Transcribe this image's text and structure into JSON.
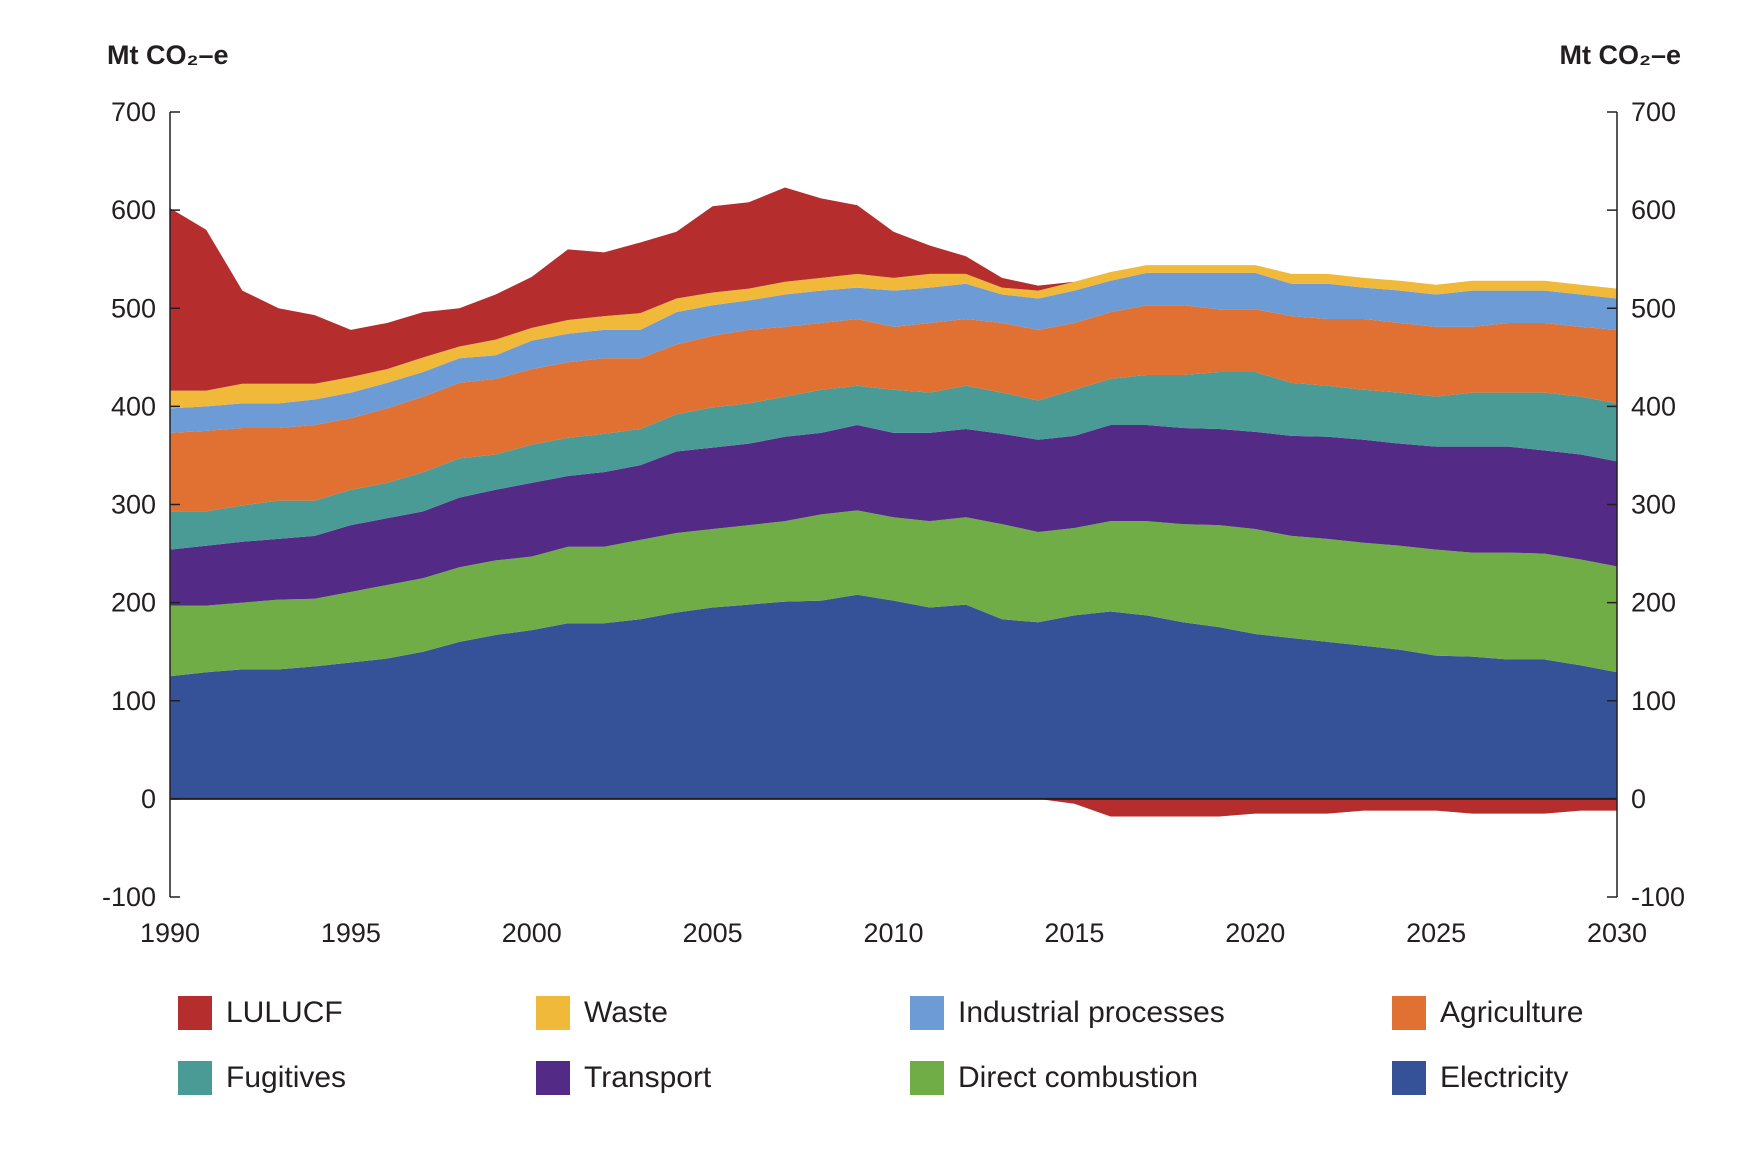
{
  "chart_data": {
    "type": "area",
    "stacked": true,
    "y_label_left": "Mt CO₂–e",
    "y_label_right": "Mt CO₂–e",
    "ylim": [
      -100,
      700
    ],
    "yticks": [
      -100,
      0,
      100,
      200,
      300,
      400,
      500,
      600,
      700
    ],
    "xlim": [
      1990,
      2030
    ],
    "xticks": [
      1990,
      1995,
      2000,
      2005,
      2010,
      2015,
      2020,
      2025,
      2030
    ],
    "grid": false,
    "legend_position": "bottom",
    "x": [
      1990,
      1991,
      1992,
      1993,
      1994,
      1995,
      1996,
      1997,
      1998,
      1999,
      2000,
      2001,
      2002,
      2003,
      2004,
      2005,
      2006,
      2007,
      2008,
      2009,
      2010,
      2011,
      2012,
      2013,
      2014,
      2015,
      2016,
      2017,
      2018,
      2019,
      2020,
      2021,
      2022,
      2023,
      2024,
      2025,
      2026,
      2027,
      2028,
      2029,
      2030
    ],
    "series": [
      {
        "name": "Electricity",
        "color": "#355299",
        "values": [
          125,
          129,
          132,
          132,
          135,
          139,
          143,
          150,
          160,
          167,
          172,
          179,
          179,
          183,
          190,
          195,
          198,
          201,
          202,
          208,
          202,
          195,
          198,
          183,
          180,
          187,
          191,
          187,
          180,
          175,
          168,
          164,
          160,
          156,
          152,
          146,
          145,
          142,
          142,
          136,
          129
        ]
      },
      {
        "name": "Direct combustion",
        "color": "#71ad47",
        "values": [
          72,
          68,
          68,
          71,
          69,
          72,
          75,
          75,
          76,
          76,
          75,
          78,
          78,
          81,
          81,
          80,
          81,
          82,
          88,
          86,
          85,
          88,
          89,
          97,
          92,
          89,
          92,
          96,
          100,
          104,
          107,
          104,
          105,
          105,
          106,
          108,
          106,
          109,
          108,
          108,
          108
        ]
      },
      {
        "name": "Transport",
        "color": "#532a85",
        "values": [
          57,
          61,
          62,
          62,
          64,
          68,
          68,
          68,
          71,
          72,
          75,
          72,
          76,
          76,
          83,
          83,
          83,
          86,
          83,
          87,
          86,
          90,
          90,
          92,
          94,
          94,
          98,
          98,
          98,
          98,
          99,
          102,
          104,
          105,
          104,
          105,
          108,
          108,
          105,
          107,
          107
        ]
      },
      {
        "name": "Fugitives",
        "color": "#4a9a96",
        "values": [
          39,
          35,
          37,
          39,
          36,
          36,
          36,
          40,
          40,
          36,
          39,
          39,
          39,
          37,
          38,
          41,
          41,
          41,
          44,
          40,
          44,
          41,
          44,
          42,
          40,
          47,
          47,
          51,
          54,
          58,
          61,
          54,
          52,
          51,
          52,
          51,
          55,
          55,
          59,
          59,
          59
        ]
      },
      {
        "name": "Agriculture",
        "color": "#e07133",
        "values": [
          80,
          82,
          79,
          74,
          77,
          73,
          76,
          77,
          77,
          77,
          77,
          77,
          77,
          72,
          71,
          73,
          75,
          71,
          68,
          68,
          64,
          71,
          68,
          71,
          72,
          68,
          68,
          71,
          71,
          64,
          64,
          68,
          68,
          72,
          71,
          71,
          67,
          71,
          71,
          71,
          75
        ]
      },
      {
        "name": "Industrial processes",
        "color": "#6d9bd6",
        "values": [
          25,
          25,
          25,
          25,
          26,
          26,
          26,
          25,
          25,
          24,
          29,
          29,
          29,
          29,
          33,
          31,
          30,
          33,
          33,
          32,
          37,
          36,
          36,
          29,
          32,
          33,
          32,
          33,
          33,
          37,
          37,
          33,
          36,
          32,
          33,
          33,
          37,
          33,
          33,
          33,
          32
        ]
      },
      {
        "name": "Waste",
        "color": "#f0b93a",
        "values": [
          18,
          16,
          20,
          20,
          16,
          16,
          14,
          15,
          12,
          16,
          13,
          14,
          14,
          17,
          14,
          13,
          12,
          13,
          13,
          14,
          13,
          14,
          10,
          7,
          8,
          9,
          9,
          8,
          8,
          8,
          8,
          10,
          10,
          10,
          10,
          10,
          10,
          10,
          10,
          10,
          10
        ]
      },
      {
        "name": "LULUCF",
        "color": "#b52d2d",
        "values": [
          186,
          164,
          95,
          77,
          70,
          48,
          47,
          46,
          39,
          46,
          52,
          72,
          65,
          72,
          68,
          88,
          88,
          96,
          81,
          70,
          47,
          29,
          18,
          10,
          5,
          -5,
          -18,
          -18,
          -18,
          -18,
          -15,
          -15,
          -15,
          -12,
          -12,
          -12,
          -15,
          -15,
          -15,
          -12,
          -12
        ]
      }
    ],
    "legend_order": [
      "LULUCF",
      "Waste",
      "Industrial processes",
      "Agriculture",
      "Fugitives",
      "Transport",
      "Direct combustion",
      "Electricity"
    ]
  }
}
